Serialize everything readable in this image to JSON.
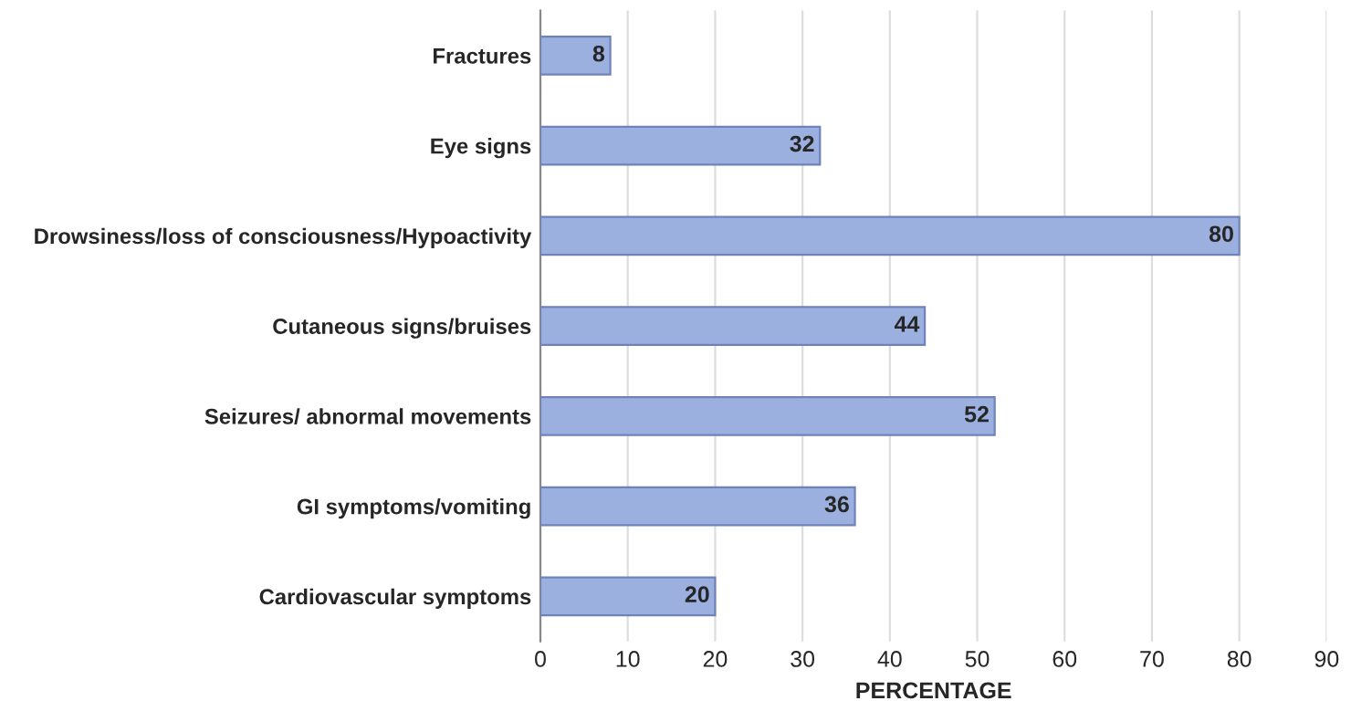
{
  "chart_data": {
    "type": "bar",
    "orientation": "horizontal",
    "xlabel": "PERCENTAGE",
    "categories": [
      "Fractures",
      "Eye signs",
      "Drowsiness/loss of consciousness/Hypoactivity",
      "Cutaneous signs/bruises",
      "Seizures/ abnormal movements",
      "GI symptoms/vomiting",
      "Cardiovascular symptoms"
    ],
    "values": [
      8,
      32,
      80,
      44,
      52,
      36,
      20
    ],
    "color": "#9cb0e0",
    "xlim": [
      0,
      90
    ],
    "xticks": [
      0,
      10,
      20,
      30,
      40,
      50,
      60,
      70,
      80,
      90
    ],
    "grid": "x",
    "data_labels": true
  }
}
